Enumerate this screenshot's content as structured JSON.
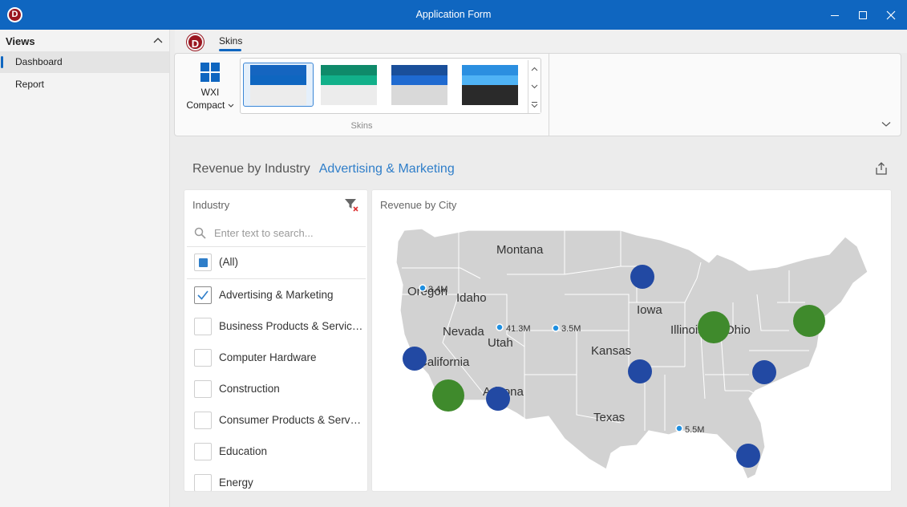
{
  "window": {
    "title": "Application Form"
  },
  "sidebar": {
    "header": "Views",
    "items": [
      {
        "label": "Dashboard",
        "active": true
      },
      {
        "label": "Report",
        "active": false
      }
    ]
  },
  "ribbon": {
    "tabs": [
      {
        "label": "Skins",
        "active": true
      }
    ],
    "wxi_label_line1": "WXI",
    "wxi_label_line2": "Compact",
    "group_label": "Skins",
    "skins": [
      {
        "colors": [
          "#1565c0",
          "#0f66c0",
          "#ececec",
          "#ececec"
        ],
        "selected": true
      },
      {
        "colors": [
          "#0f8a6a",
          "#12b08a",
          "#ececec",
          "#ececec"
        ],
        "selected": false
      },
      {
        "colors": [
          "#1a4f9a",
          "#1f6ad0",
          "#d9d9d9",
          "#d9d9d9"
        ],
        "selected": false
      },
      {
        "colors": [
          "#2b8fe0",
          "#4fb3f5",
          "#2a2a2a",
          "#2a2a2a"
        ],
        "selected": false
      }
    ]
  },
  "dashboard": {
    "title": "Revenue by Industry",
    "selection": "Advertising & Marketing"
  },
  "industry_panel": {
    "title": "Industry",
    "search_placeholder": "Enter text to search...",
    "all_label": "(All)",
    "items": [
      {
        "label": "Advertising & Marketing",
        "checked": true
      },
      {
        "label": "Business Products & Services",
        "checked": false
      },
      {
        "label": "Computer Hardware",
        "checked": false
      },
      {
        "label": "Construction",
        "checked": false
      },
      {
        "label": "Consumer Products & Services",
        "checked": false
      },
      {
        "label": "Education",
        "checked": false
      },
      {
        "label": "Energy",
        "checked": false
      }
    ]
  },
  "map_panel": {
    "title": "Revenue by City",
    "state_labels": [
      "Montana",
      "Oregon",
      "Idaho",
      "Nevada",
      "Utah",
      "Iowa",
      "Illinois",
      "Ohio",
      "Kansas",
      "California",
      "Arizona",
      "Texas"
    ],
    "value_labels": [
      "3.4M",
      "41.3M",
      "3.5M",
      "5.5M"
    ],
    "colors": {
      "blue_bubble": "#2249a3",
      "green_bubble": "#3f8a2c",
      "land": "#d2d2d2",
      "point": "#1f8fe0"
    }
  }
}
